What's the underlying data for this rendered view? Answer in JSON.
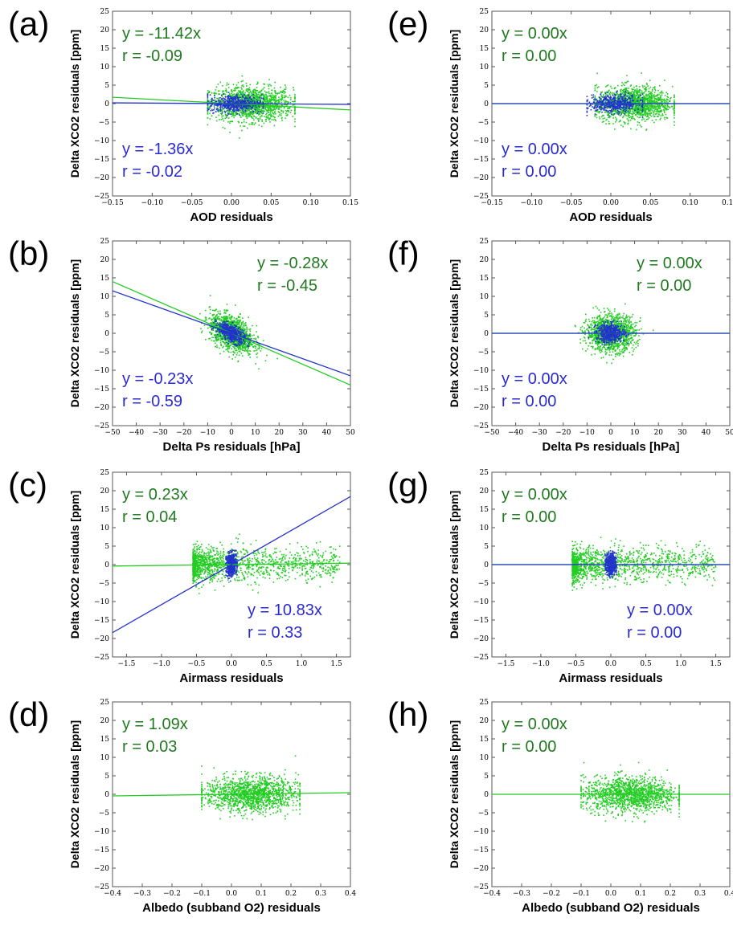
{
  "colors": {
    "green": "#22cc22",
    "green_text": "#1f7a1f",
    "blue": "#2233cc",
    "blue_text": "#2a2ad0"
  },
  "chart_data": [
    {
      "panel": "(a)",
      "type": "scatter",
      "scale": "linear",
      "xlabel": "AOD residuals",
      "ylabel": "Delta XCO2 residuals [ppm]",
      "xlim": [
        -0.15,
        0.15
      ],
      "ylim": [
        -25,
        25
      ],
      "xticks": [
        -0.15,
        -0.1,
        -0.05,
        0.0,
        0.05,
        0.1,
        0.15
      ],
      "xtick_labels": [
        "−0.15",
        "−0.10",
        "−0.05",
        "0.00",
        "0.05",
        "0.10",
        "0.15"
      ],
      "yticks": [
        -25,
        -20,
        -15,
        -10,
        -5,
        0,
        5,
        10,
        15,
        20,
        25
      ],
      "ytick_labels": [
        "−25",
        "−20",
        "−15",
        "−10",
        "−5",
        "0",
        "5",
        "10",
        "15",
        "20",
        "25"
      ],
      "series": [
        {
          "color": "green",
          "fit_slope": -11.42,
          "fit_text": "y = -11.42x",
          "r_text": "r = -0.09",
          "cloud": {
            "x_range": [
              -0.03,
              0.08
            ],
            "y_sd": 2.3,
            "clip": [
              -10,
              11
            ]
          }
        },
        {
          "color": "blue",
          "fit_slope": -1.36,
          "fit_text": "y = -1.36x",
          "r_text": "r = -0.02",
          "cloud": {
            "x_range": [
              -0.03,
              0.04
            ],
            "y_sd": 1.2,
            "clip": [
              -8,
              8
            ]
          }
        }
      ],
      "annotations": [
        {
          "series": 0,
          "place": "top-left"
        },
        {
          "series": 1,
          "place": "bottom-left"
        }
      ]
    },
    {
      "panel": "(b)",
      "type": "scatter",
      "scale": "linear",
      "xlabel": "Delta Ps residuals [hPa]",
      "ylabel": "Delta XCO2 residuals [ppm]",
      "xlim": [
        -50,
        50
      ],
      "ylim": [
        -25,
        25
      ],
      "xticks": [
        -50,
        -40,
        -30,
        -20,
        -10,
        0,
        10,
        20,
        30,
        40,
        50
      ],
      "xtick_labels": [
        "−50",
        "−40",
        "−30",
        "−20",
        "−10",
        "0",
        "10",
        "20",
        "30",
        "40",
        "50"
      ],
      "yticks": [
        -25,
        -20,
        -15,
        -10,
        -5,
        0,
        5,
        10,
        15,
        20,
        25
      ],
      "ytick_labels": [
        "−25",
        "−20",
        "−15",
        "−10",
        "−5",
        "0",
        "5",
        "10",
        "15",
        "20",
        "25"
      ],
      "series": [
        {
          "color": "green",
          "fit_slope": -0.28,
          "fit_text": "y = -0.28x",
          "r_text": "r = -0.45",
          "cloud": {
            "x_center": 0,
            "x_sd": 4.5,
            "y_sd": 2.5,
            "corr": -0.45,
            "clip": [
              -12,
              12
            ]
          }
        },
        {
          "color": "blue",
          "fit_slope": -0.23,
          "fit_text": "y = -0.23x",
          "r_text": "r = -0.59",
          "cloud": {
            "x_center": 0,
            "x_sd": 3,
            "y_sd": 1.4,
            "corr": -0.59,
            "clip": [
              -8,
              8
            ]
          }
        }
      ],
      "annotations": [
        {
          "series": 0,
          "place": "top-right"
        },
        {
          "series": 1,
          "place": "bottom-left"
        }
      ]
    },
    {
      "panel": "(c)",
      "type": "scatter",
      "scale": "linear",
      "xlabel": "Airmass residuals",
      "ylabel": "Delta XCO2 residuals [ppm]",
      "xlim": [
        -1.7,
        1.7
      ],
      "ylim": [
        -25,
        25
      ],
      "xticks": [
        -1.5,
        -1.0,
        -0.5,
        0.0,
        0.5,
        1.0,
        1.5
      ],
      "xtick_labels": [
        "−1.5",
        "−1.0",
        "−0.5",
        "0.0",
        "0.5",
        "1.0",
        "1.5"
      ],
      "yticks": [
        -25,
        -20,
        -15,
        -10,
        -5,
        0,
        5,
        10,
        15,
        20,
        25
      ],
      "ytick_labels": [
        "−25",
        "−20",
        "−15",
        "−10",
        "−5",
        "0",
        "5",
        "10",
        "15",
        "20",
        "25"
      ],
      "series": [
        {
          "color": "green",
          "fit_slope": 0.23,
          "fit_text": "y = 0.23x",
          "r_text": "r = 0.04",
          "cloud": {
            "x_range": [
              -0.55,
              1.55
            ],
            "x_skew": true,
            "y_sd": 2.3,
            "clip": [
              -10,
              10
            ]
          }
        },
        {
          "color": "blue",
          "fit_slope": 10.83,
          "fit_text": "y = 10.83x",
          "r_text": "r = 0.33",
          "cloud": {
            "x_range": [
              -0.08,
              0.08
            ],
            "y_sd": 1.5,
            "clip": [
              -9,
              8
            ]
          }
        }
      ],
      "annotations": [
        {
          "series": 0,
          "place": "top-left"
        },
        {
          "series": 1,
          "place": "bottom-right"
        }
      ]
    },
    {
      "panel": "(d)",
      "type": "scatter",
      "scale": "linear",
      "xlabel": "Albedo (subband O2) residuals",
      "ylabel": "Delta XCO2 residuals [ppm]",
      "xlim": [
        -0.4,
        0.4
      ],
      "ylim": [
        -25,
        25
      ],
      "xticks": [
        -0.4,
        -0.3,
        -0.2,
        -0.1,
        0.0,
        0.1,
        0.2,
        0.3,
        0.4
      ],
      "xtick_labels": [
        "−0.4",
        "−0.3",
        "−0.2",
        "−0.1",
        "0.0",
        "0.1",
        "0.2",
        "0.3",
        "0.4"
      ],
      "yticks": [
        -25,
        -20,
        -15,
        -10,
        -5,
        0,
        5,
        10,
        15,
        20,
        25
      ],
      "ytick_labels": [
        "−25",
        "−20",
        "−15",
        "−10",
        "−5",
        "0",
        "5",
        "10",
        "15",
        "20",
        "25"
      ],
      "series": [
        {
          "color": "green",
          "fit_slope": 1.09,
          "fit_text": "y = 1.09x",
          "r_text": "r = 0.03",
          "cloud": {
            "x_range": [
              -0.1,
              0.23
            ],
            "y_sd": 2.4,
            "clip": [
              -12,
              11
            ]
          }
        }
      ],
      "annotations": [
        {
          "series": 0,
          "place": "top-left"
        }
      ]
    },
    {
      "panel": "(e)",
      "type": "scatter",
      "scale": "linear",
      "xlabel": "AOD residuals",
      "ylabel": "Delta XCO2 residuals [ppm]",
      "xlim": [
        -0.15,
        0.15
      ],
      "ylim": [
        -25,
        25
      ],
      "xticks": [
        -0.15,
        -0.1,
        -0.05,
        0.0,
        0.05,
        0.1,
        0.15
      ],
      "xtick_labels": [
        "−0.15",
        "−0.10",
        "−0.05",
        "0.00",
        "0.05",
        "0.10",
        "0.15"
      ],
      "yticks": [
        -25,
        -20,
        -15,
        -10,
        -5,
        0,
        5,
        10,
        15,
        20,
        25
      ],
      "ytick_labels": [
        "−25",
        "−20",
        "−15",
        "−10",
        "−5",
        "0",
        "5",
        "10",
        "15",
        "20",
        "25"
      ],
      "series": [
        {
          "color": "green",
          "fit_slope": 0.0,
          "fit_text": "y = 0.00x",
          "r_text": "r = 0.00",
          "cloud": {
            "x_range": [
              -0.02,
              0.08
            ],
            "y_sd": 2.3,
            "clip": [
              -15,
              13
            ]
          }
        },
        {
          "color": "blue",
          "fit_slope": 0.0,
          "fit_text": "y = 0.00x",
          "r_text": "r = 0.00",
          "cloud": {
            "x_range": [
              -0.03,
              0.04
            ],
            "y_sd": 1.2,
            "clip": [
              -8,
              8
            ]
          }
        }
      ],
      "annotations": [
        {
          "series": 0,
          "place": "top-left"
        },
        {
          "series": 1,
          "place": "bottom-left"
        }
      ]
    },
    {
      "panel": "(f)",
      "type": "scatter",
      "scale": "linear",
      "xlabel": "Delta Ps residuals [hPa]",
      "ylabel": "Delta XCO2 residuals [ppm]",
      "xlim": [
        -50,
        50
      ],
      "ylim": [
        -25,
        25
      ],
      "xticks": [
        -50,
        -40,
        -30,
        -20,
        -10,
        0,
        10,
        20,
        30,
        40,
        50
      ],
      "xtick_labels": [
        "−50",
        "−40",
        "−30",
        "−20",
        "−10",
        "0",
        "10",
        "20",
        "30",
        "40",
        "50"
      ],
      "yticks": [
        -25,
        -20,
        -15,
        -10,
        -5,
        0,
        5,
        10,
        15,
        20,
        25
      ],
      "ytick_labels": [
        "−25",
        "−20",
        "−15",
        "−10",
        "−5",
        "0",
        "5",
        "10",
        "15",
        "20",
        "25"
      ],
      "series": [
        {
          "color": "green",
          "fit_slope": 0.0,
          "fit_text": "y = 0.00x",
          "r_text": "r = 0.00",
          "cloud": {
            "x_center": 0,
            "x_sd": 5,
            "y_sd": 2.4,
            "corr": 0,
            "clip": [
              -12,
              13
            ]
          }
        },
        {
          "color": "blue",
          "fit_slope": 0.0,
          "fit_text": "y = 0.00x",
          "r_text": "r = 0.00",
          "cloud": {
            "x_center": 0,
            "x_sd": 3,
            "y_sd": 1.3,
            "corr": 0,
            "clip": [
              -8,
              8
            ]
          }
        }
      ],
      "annotations": [
        {
          "series": 0,
          "place": "top-right"
        },
        {
          "series": 1,
          "place": "bottom-left"
        }
      ]
    },
    {
      "panel": "(g)",
      "type": "scatter",
      "scale": "linear",
      "xlabel": "Airmass residuals",
      "ylabel": "Delta XCO2 residuals [ppm]",
      "xlim": [
        -1.7,
        1.7
      ],
      "ylim": [
        -25,
        25
      ],
      "xticks": [
        -1.5,
        -1.0,
        -0.5,
        0.0,
        0.5,
        1.0,
        1.5
      ],
      "xtick_labels": [
        "−1.5",
        "−1.0",
        "−0.5",
        "0.0",
        "0.5",
        "1.0",
        "1.5"
      ],
      "yticks": [
        -25,
        -20,
        -15,
        -10,
        -5,
        0,
        5,
        10,
        15,
        20,
        25
      ],
      "ytick_labels": [
        "−25",
        "−20",
        "−15",
        "−10",
        "−5",
        "0",
        "5",
        "10",
        "15",
        "20",
        "25"
      ],
      "series": [
        {
          "color": "green",
          "fit_slope": 0.0,
          "fit_text": "y = 0.00x",
          "r_text": "r = 0.00",
          "cloud": {
            "x_range": [
              -0.55,
              1.5
            ],
            "x_skew": true,
            "y_sd": 2.3,
            "clip": [
              -10,
              13
            ]
          }
        },
        {
          "color": "blue",
          "fit_slope": 0.0,
          "fit_text": "y = 0.00x",
          "r_text": "r = 0.00",
          "cloud": {
            "x_range": [
              -0.08,
              0.08
            ],
            "y_sd": 1.5,
            "clip": [
              -8,
              8
            ]
          }
        }
      ],
      "annotations": [
        {
          "series": 0,
          "place": "top-left"
        },
        {
          "series": 1,
          "place": "bottom-right"
        }
      ]
    },
    {
      "panel": "(h)",
      "type": "scatter",
      "scale": "linear",
      "xlabel": "Albedo (subband O2) residuals",
      "ylabel": "Delta XCO2 residuals [ppm]",
      "xlim": [
        -0.4,
        0.4
      ],
      "ylim": [
        -25,
        25
      ],
      "xticks": [
        -0.4,
        -0.3,
        -0.2,
        -0.1,
        0.0,
        0.1,
        0.2,
        0.3,
        0.4
      ],
      "xtick_labels": [
        "−0.4",
        "−0.3",
        "−0.2",
        "−0.1",
        "0.0",
        "0.1",
        "0.2",
        "0.3",
        "0.4"
      ],
      "yticks": [
        -25,
        -20,
        -15,
        -10,
        -5,
        0,
        5,
        10,
        15,
        20,
        25
      ],
      "ytick_labels": [
        "−25",
        "−20",
        "−15",
        "−10",
        "−5",
        "0",
        "5",
        "10",
        "15",
        "20",
        "25"
      ],
      "series": [
        {
          "color": "green",
          "fit_slope": 0.0,
          "fit_text": "y = 0.00x",
          "r_text": "r = 0.00",
          "cloud": {
            "x_range": [
              -0.1,
              0.23
            ],
            "y_sd": 2.4,
            "clip": [
              -16,
              13
            ]
          }
        }
      ],
      "annotations": [
        {
          "series": 0,
          "place": "top-left"
        }
      ]
    }
  ]
}
